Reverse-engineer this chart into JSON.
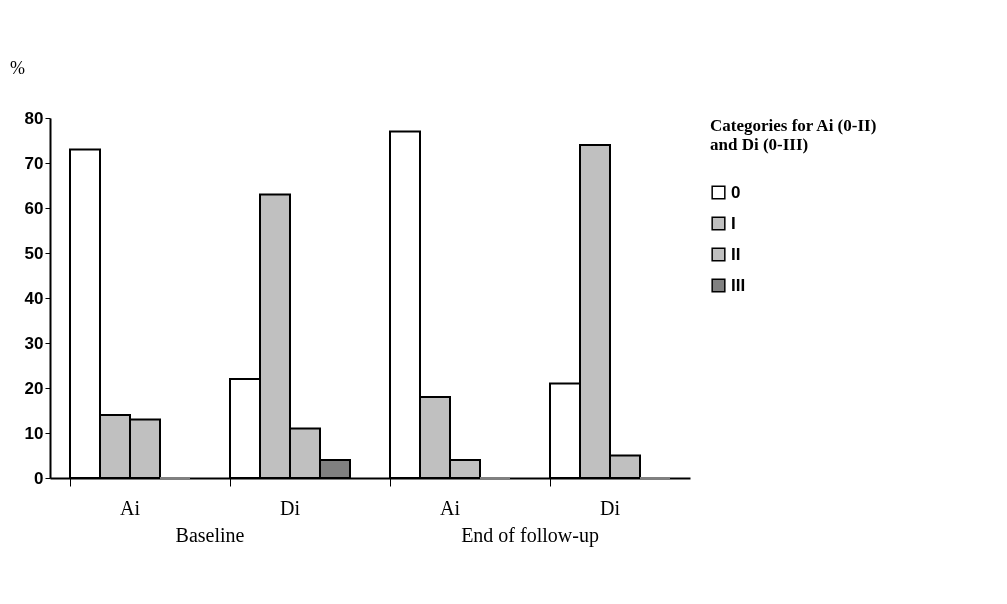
{
  "chart_data": {
    "type": "bar",
    "ylabel": "%",
    "legend_title": "Categories for Ai (0-II) and Di (0-III)",
    "categories": [
      "Ai",
      "Di",
      "Ai",
      "Di"
    ],
    "series": [
      {
        "name": "0",
        "color": "#ffffff",
        "values": [
          73,
          22,
          77,
          21
        ]
      },
      {
        "name": "I",
        "color": "#c0c0c0",
        "values": [
          14,
          63,
          18,
          74
        ]
      },
      {
        "name": "II",
        "color": "#c0c0c0",
        "values": [
          13,
          11,
          4,
          5
        ]
      },
      {
        "name": "III",
        "color": "#808080",
        "values": [
          0,
          4,
          0,
          0
        ]
      }
    ],
    "ylim": [
      0,
      80
    ],
    "yticks": [
      0,
      10,
      20,
      30,
      40,
      50,
      60,
      70,
      80
    ],
    "annotations": [
      "Baseline",
      "End of follow-up"
    ],
    "legend": "right",
    "grid": false
  }
}
